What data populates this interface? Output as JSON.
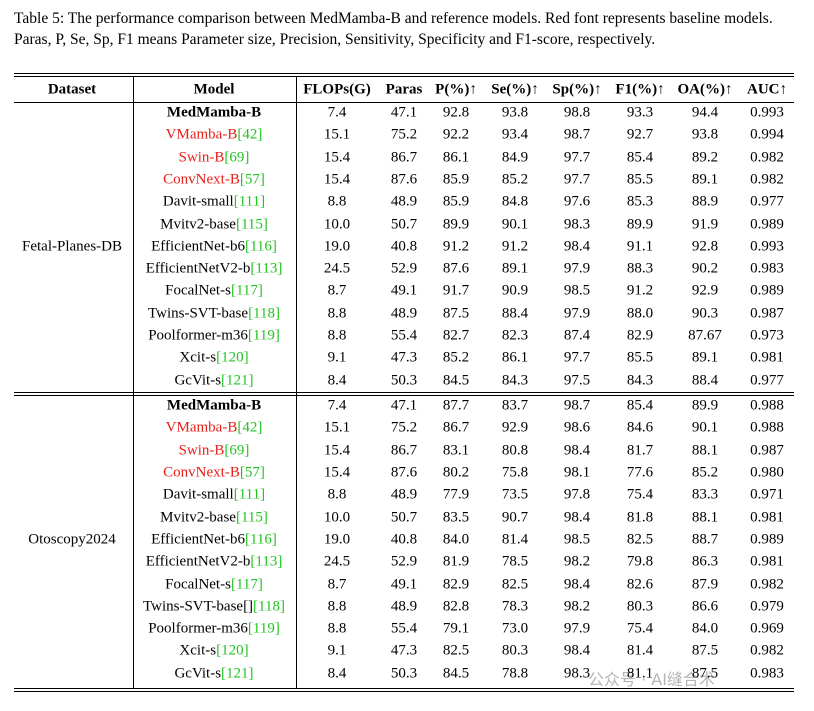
{
  "caption": "Table 5: The performance comparison between MedMamba-B and reference models. Red font represents baseline models. Paras, P, Se, Sp, F1 means Parameter size, Precision, Sensitivity, Specificity and F1-score, respectively.",
  "table": {
    "ref_color": "#22c322",
    "header": [
      "Dataset",
      "Model",
      "FLOPs(G)",
      "Paras",
      "P(%)↑",
      "Se(%)↑",
      "Sp(%)↑",
      "F1(%)↑",
      "OA(%)↑",
      "AUC↑"
    ],
    "groups": [
      {
        "dataset": "Fetal-Planes-DB",
        "rows": [
          {
            "model": "MedMamba-B",
            "bold": true,
            "cells": [
              "7.4",
              "47.1",
              "92.8",
              "93.8",
              "98.8",
              "93.3",
              "94.4",
              "0.993"
            ]
          },
          {
            "model": "VMamba-B",
            "ref": "[42]",
            "color": "#e8201a",
            "cells": [
              "15.1",
              "75.2",
              "92.2",
              "93.4",
              "98.7",
              "92.7",
              "93.8",
              "0.994"
            ]
          },
          {
            "model": "Swin-B",
            "ref": "[69]",
            "color": "#e8201a",
            "cells": [
              "15.4",
              "86.7",
              "86.1",
              "84.9",
              "97.7",
              "85.4",
              "89.2",
              "0.982"
            ]
          },
          {
            "model": "ConvNext-B",
            "ref": "[57]",
            "color": "#e8201a",
            "cells": [
              "15.4",
              "87.6",
              "85.9",
              "85.2",
              "97.7",
              "85.5",
              "89.1",
              "0.982"
            ]
          },
          {
            "model": "Davit-small",
            "ref": "[111]",
            "cells": [
              "8.8",
              "48.9",
              "85.9",
              "84.8",
              "97.6",
              "85.3",
              "88.9",
              "0.977"
            ]
          },
          {
            "model": "Mvitv2-base",
            "ref": "[115]",
            "cells": [
              "10.0",
              "50.7",
              "89.9",
              "90.1",
              "98.3",
              "89.9",
              "91.9",
              "0.989"
            ]
          },
          {
            "model": "EfficientNet-b6",
            "ref": "[116]",
            "cells": [
              "19.0",
              "40.8",
              "91.2",
              "91.2",
              "98.4",
              "91.1",
              "92.8",
              "0.993"
            ]
          },
          {
            "model": "EfficientNetV2-b",
            "ref": "[113]",
            "cells": [
              "24.5",
              "52.9",
              "87.6",
              "89.1",
              "97.9",
              "88.3",
              "90.2",
              "0.983"
            ]
          },
          {
            "model": "FocalNet-s",
            "ref": "[117]",
            "cells": [
              "8.7",
              "49.1",
              "91.7",
              "90.9",
              "98.5",
              "91.2",
              "92.9",
              "0.989"
            ]
          },
          {
            "model": "Twins-SVT-base",
            "ref": "[118]",
            "cells": [
              "8.8",
              "48.9",
              "87.5",
              "88.4",
              "97.9",
              "88.0",
              "90.3",
              "0.987"
            ]
          },
          {
            "model": "Poolformer-m36",
            "ref": "[119]",
            "cells": [
              "8.8",
              "55.4",
              "82.7",
              "82.3",
              "87.4",
              "82.9",
              "87.67",
              "0.973"
            ]
          },
          {
            "model": "Xcit-s",
            "ref": "[120]",
            "cells": [
              "9.1",
              "47.3",
              "85.2",
              "86.1",
              "97.7",
              "85.5",
              "89.1",
              "0.981"
            ]
          },
          {
            "model": "GcVit-s",
            "ref": "[121]",
            "cells": [
              "8.4",
              "50.3",
              "84.5",
              "84.3",
              "97.5",
              "84.3",
              "88.4",
              "0.977"
            ]
          }
        ]
      },
      {
        "dataset": "Otoscopy2024",
        "rows": [
          {
            "model": "MedMamba-B",
            "bold": true,
            "cells": [
              "7.4",
              "47.1",
              "87.7",
              "83.7",
              "98.7",
              "85.4",
              "89.9",
              "0.988"
            ]
          },
          {
            "model": "VMamba-B",
            "ref": "[42]",
            "color": "#e8201a",
            "cells": [
              "15.1",
              "75.2",
              "86.7",
              "92.9",
              "98.6",
              "84.6",
              "90.1",
              "0.988"
            ]
          },
          {
            "model": "Swin-B",
            "ref": "[69]",
            "color": "#e8201a",
            "cells": [
              "15.4",
              "86.7",
              "83.1",
              "80.8",
              "98.4",
              "81.7",
              "88.1",
              "0.987"
            ]
          },
          {
            "model": "ConvNext-B",
            "ref": "[57]",
            "color": "#e8201a",
            "cells": [
              "15.4",
              "87.6",
              "80.2",
              "75.8",
              "98.1",
              "77.6",
              "85.2",
              "0.980"
            ]
          },
          {
            "model": "Davit-small",
            "ref": "[111]",
            "cells": [
              "8.8",
              "48.9",
              "77.9",
              "73.5",
              "97.8",
              "75.4",
              "83.3",
              "0.971"
            ]
          },
          {
            "model": "Mvitv2-base",
            "ref": "[115]",
            "cells": [
              "10.0",
              "50.7",
              "83.5",
              "90.7",
              "98.4",
              "81.8",
              "88.1",
              "0.981"
            ]
          },
          {
            "model": "EfficientNet-b6",
            "ref": "[116]",
            "cells": [
              "19.0",
              "40.8",
              "84.0",
              "81.4",
              "98.5",
              "82.5",
              "88.7",
              "0.989"
            ]
          },
          {
            "model": "EfficientNetV2-b",
            "ref": "[113]",
            "cells": [
              "24.5",
              "52.9",
              "81.9",
              "78.5",
              "98.2",
              "79.8",
              "86.3",
              "0.981"
            ]
          },
          {
            "model": "FocalNet-s",
            "ref": "[117]",
            "cells": [
              "8.7",
              "49.1",
              "82.9",
              "82.5",
              "98.4",
              "82.6",
              "87.9",
              "0.982"
            ]
          },
          {
            "model": "Twins-SVT-base[]",
            "ref": "[118]",
            "cells": [
              "8.8",
              "48.9",
              "82.8",
              "78.3",
              "98.2",
              "80.3",
              "86.6",
              "0.979"
            ]
          },
          {
            "model": "Poolformer-m36",
            "ref": "[119]",
            "cells": [
              "8.8",
              "55.4",
              "79.1",
              "73.0",
              "97.9",
              "75.4",
              "84.0",
              "0.969"
            ]
          },
          {
            "model": "Xcit-s",
            "ref": "[120]",
            "cells": [
              "9.1",
              "47.3",
              "82.5",
              "80.3",
              "98.4",
              "81.4",
              "87.5",
              "0.982"
            ]
          },
          {
            "model": "GcVit-s",
            "ref": "[121]",
            "cells": [
              "8.4",
              "50.3",
              "84.5",
              "78.8",
              "98.3",
              "81.1",
              "87.5",
              "0.983"
            ]
          }
        ]
      }
    ]
  },
  "watermark": "公众号 · AI缝合术"
}
